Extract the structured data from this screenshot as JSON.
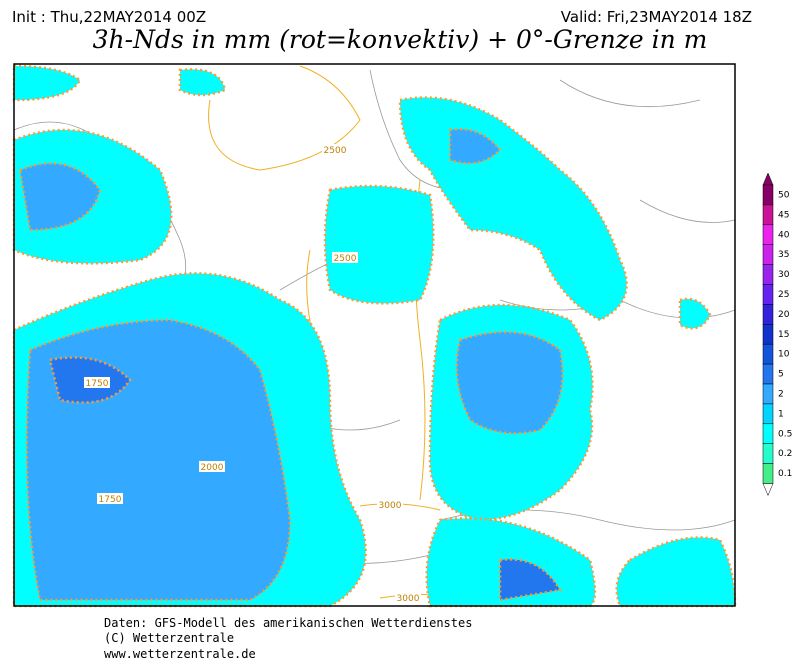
{
  "header": {
    "init": "Init : Thu,22MAY2014 00Z",
    "valid": "Valid: Fri,23MAY2014 18Z",
    "title": "3h-Nds in mm (rot=konvektiv) + 0°-Grenze in m"
  },
  "legend": {
    "levels": [
      0.1,
      0.2,
      0.5,
      1,
      2,
      5,
      10,
      15,
      20,
      25,
      30,
      35,
      40,
      45,
      50
    ],
    "colors": [
      "#44ee88",
      "#22ffcc",
      "#00ffff",
      "#00d4ff",
      "#33aaff",
      "#2277ee",
      "#1155dd",
      "#1133cc",
      "#3322dd",
      "#6622ee",
      "#9922ee",
      "#cc22ee",
      "#ee22ee",
      "#cc1199",
      "#880066"
    ]
  },
  "contour_labels": [
    "2500",
    "2500",
    "1750",
    "2000",
    "1750",
    "3000",
    "3000"
  ],
  "footer": [
    "Daten: GFS-Modell des amerikanischen Wetterdienstes",
    "(C) Wetterzentrale",
    "www.wetterzentrale.de"
  ]
}
